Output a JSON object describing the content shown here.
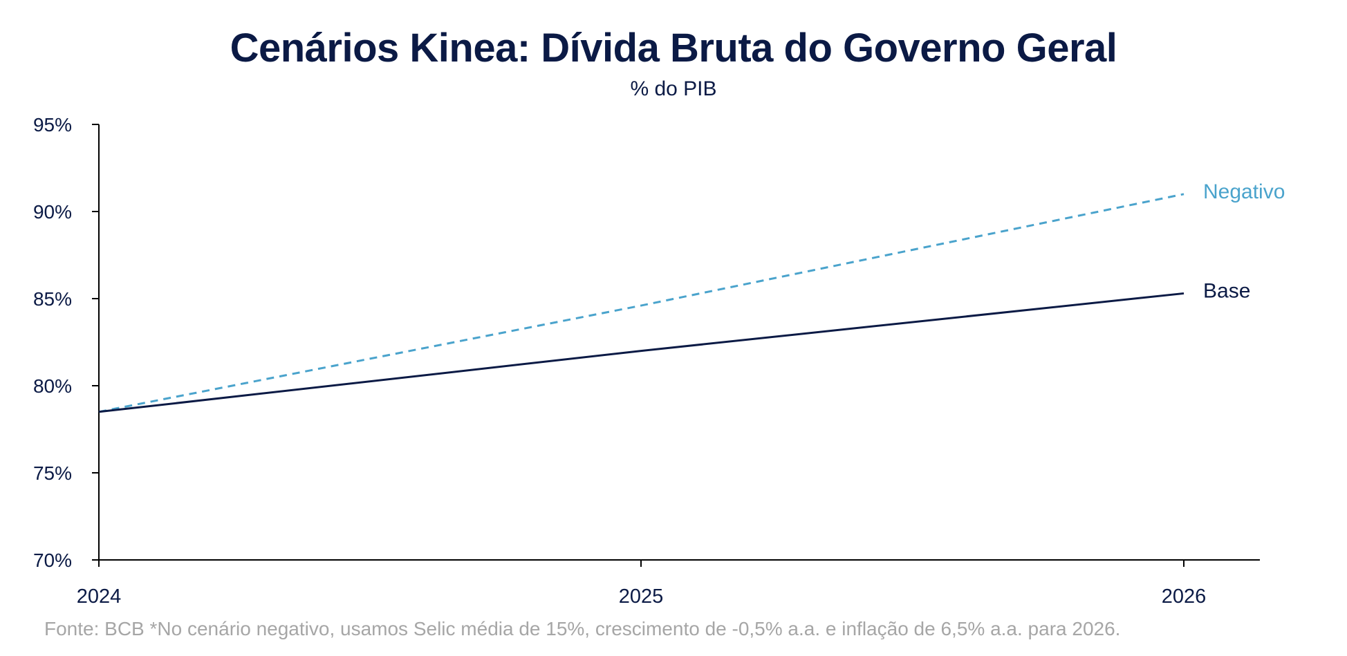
{
  "chart_data": {
    "type": "line",
    "title": "Cenários Kinea: Dívida Bruta do Governo Geral",
    "subtitle": "% do PIB",
    "x": [
      "2024",
      "2025",
      "2026"
    ],
    "ylim": [
      70,
      95
    ],
    "yticks": [
      70,
      75,
      80,
      85,
      90,
      95
    ],
    "ytick_labels": [
      "70%",
      "75%",
      "80%",
      "85%",
      "90%",
      "95%"
    ],
    "grid": false,
    "legend": "inline labels at line ends",
    "series": [
      {
        "name": "Negativo",
        "values": [
          78.5,
          84.6,
          91.0
        ],
        "color": "#4aa3cc",
        "dash": true
      },
      {
        "name": "Base",
        "values": [
          78.5,
          82.0,
          85.3
        ],
        "color": "#0b1a45",
        "dash": false
      }
    ],
    "source": "Fonte: BCB *No cenário negativo, usamos Selic média de 15%, crescimento de -0,5% a.a. e inflação de 6,5% a.a. para 2026."
  }
}
